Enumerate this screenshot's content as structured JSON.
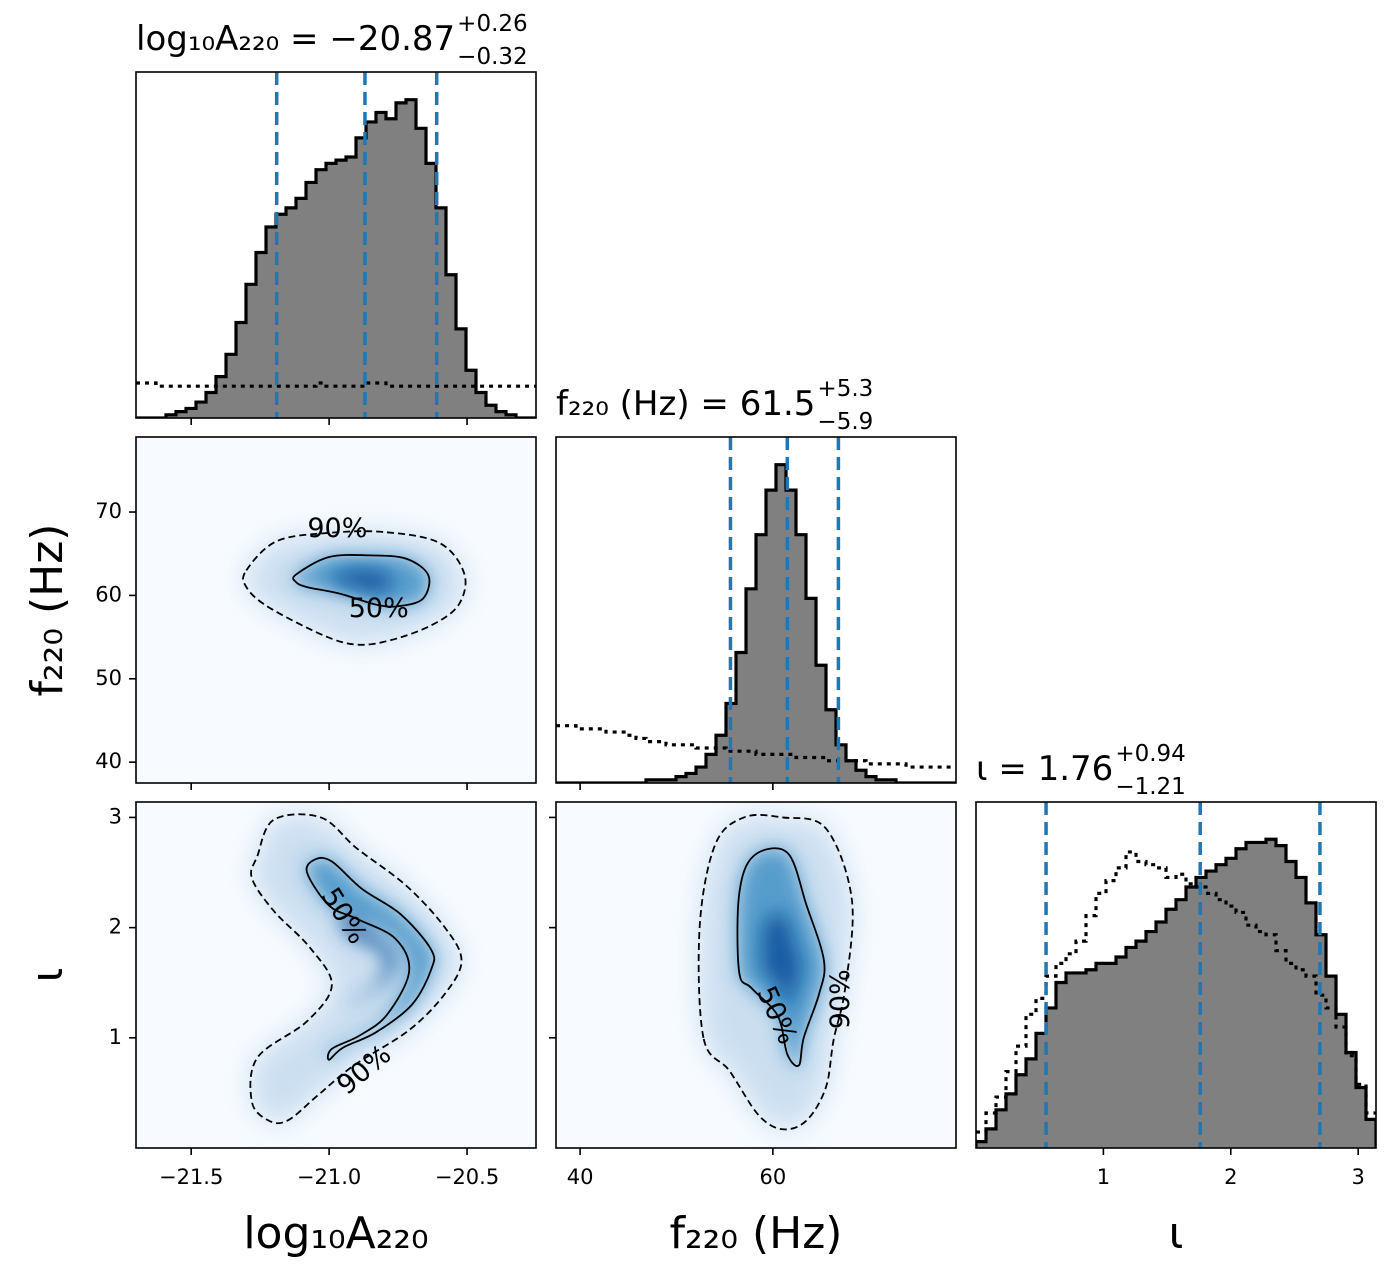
{
  "chart_data": {
    "type": "corner",
    "parameters": [
      {
        "key": "logA",
        "title": "log₁₀A₂₂₀ = −20.87",
        "title_sup": "+0.26",
        "title_sub": "−0.32",
        "median": -20.87,
        "lower": -21.19,
        "upper": -20.61,
        "xlim": [
          -21.7,
          -20.25
        ],
        "ticks": [
          -21.5,
          -21.0,
          -20.5
        ],
        "tick_labels": [
          "−21.5",
          "−21.0",
          "−20.5"
        ],
        "label": "log₁₀A₂₂₀",
        "ylabel": ""
      },
      {
        "key": "f220",
        "title": "f₂₂₀ (Hz) = 61.5",
        "title_sup": "+5.3",
        "title_sub": "−5.9",
        "median": 61.5,
        "lower": 55.6,
        "upper": 66.8,
        "xlim": [
          37.5,
          79
        ],
        "ticks": [
          40,
          60
        ],
        "tick_labels": [
          "40",
          "60"
        ],
        "ytick_values": [
          40,
          50,
          60,
          70
        ],
        "ytick_labels": [
          "40",
          "50",
          "60",
          "70"
        ],
        "label": "f₂₂₀ (Hz)",
        "ylabel": "f₂₂₀ (Hz)"
      },
      {
        "key": "iota",
        "title": "ι = 1.76",
        "title_sup": "+0.94",
        "title_sub": "−1.21",
        "median": 1.76,
        "lower": 0.55,
        "upper": 2.7,
        "xlim": [
          0,
          3.14
        ],
        "ticks": [
          1,
          2,
          3
        ],
        "tick_labels": [
          "1",
          "2",
          "3"
        ],
        "ytick_values": [
          1,
          2,
          3
        ],
        "ytick_labels": [
          "1",
          "2",
          "3"
        ],
        "label": "ι",
        "ylabel": "ι"
      }
    ],
    "histograms": {
      "logA": {
        "posterior": [
          0,
          0,
          0,
          0.01,
          0.02,
          0.03,
          0.05,
          0.08,
          0.13,
          0.2,
          0.3,
          0.42,
          0.52,
          0.6,
          0.64,
          0.66,
          0.69,
          0.74,
          0.78,
          0.8,
          0.81,
          0.82,
          0.88,
          0.93,
          0.96,
          0.94,
          0.99,
          1.0,
          0.91,
          0.8,
          0.66,
          0.45,
          0.28,
          0.15,
          0.08,
          0.04,
          0.02,
          0.01,
          0,
          0
        ],
        "prior": [
          0.11,
          0.11,
          0.1,
          0.1,
          0.1,
          0.1,
          0.1,
          0.1,
          0.1,
          0.1,
          0.1,
          0.1,
          0.1,
          0.1,
          0.1,
          0.1,
          0.1,
          0.1,
          0.11,
          0.1,
          0.1,
          0.1,
          0.1,
          0.11,
          0.11,
          0.1,
          0.1,
          0.1,
          0.1,
          0.1,
          0.1,
          0.1,
          0.1,
          0.1,
          0.1,
          0.1,
          0.1,
          0.1,
          0.1,
          0.1
        ]
      },
      "f220": {
        "posterior": [
          0,
          0,
          0,
          0,
          0,
          0,
          0,
          0,
          0,
          0.01,
          0.01,
          0.01,
          0.02,
          0.03,
          0.05,
          0.09,
          0.15,
          0.25,
          0.41,
          0.61,
          0.78,
          0.92,
          1.0,
          0.92,
          0.78,
          0.58,
          0.37,
          0.23,
          0.12,
          0.07,
          0.04,
          0.02,
          0.01,
          0.01,
          0,
          0,
          0,
          0,
          0,
          0
        ],
        "prior": [
          0.18,
          0.18,
          0.17,
          0.17,
          0.17,
          0.16,
          0.16,
          0.15,
          0.14,
          0.13,
          0.13,
          0.12,
          0.12,
          0.12,
          0.11,
          0.11,
          0.11,
          0.1,
          0.1,
          0.1,
          0.09,
          0.09,
          0.09,
          0.09,
          0.08,
          0.08,
          0.08,
          0.07,
          0.07,
          0.07,
          0.07,
          0.06,
          0.06,
          0.06,
          0.06,
          0.05,
          0.05,
          0.05,
          0.05,
          0.05
        ]
      },
      "iota": {
        "posterior": [
          0.02,
          0.06,
          0.12,
          0.17,
          0.23,
          0.28,
          0.36,
          0.44,
          0.52,
          0.55,
          0.55,
          0.56,
          0.58,
          0.58,
          0.6,
          0.63,
          0.65,
          0.68,
          0.71,
          0.75,
          0.78,
          0.82,
          0.85,
          0.87,
          0.89,
          0.91,
          0.94,
          0.96,
          0.96,
          0.97,
          0.95,
          0.9,
          0.85,
          0.77,
          0.67,
          0.54,
          0.42,
          0.3,
          0.19,
          0.09
        ],
        "prior": [
          0.05,
          0.11,
          0.16,
          0.24,
          0.32,
          0.42,
          0.47,
          0.54,
          0.58,
          0.61,
          0.65,
          0.73,
          0.8,
          0.84,
          0.88,
          0.93,
          0.9,
          0.89,
          0.88,
          0.85,
          0.86,
          0.83,
          0.82,
          0.8,
          0.78,
          0.76,
          0.74,
          0.7,
          0.68,
          0.67,
          0.62,
          0.58,
          0.56,
          0.54,
          0.48,
          0.44,
          0.38,
          0.29,
          0.2,
          0.11
        ]
      }
    },
    "joint": [
      {
        "x": "logA",
        "y": "f220",
        "contour_50": [
          [
            -21.12,
            62.5
          ],
          [
            -21.0,
            64.6
          ],
          [
            -20.85,
            64.8
          ],
          [
            -20.72,
            64.4
          ],
          [
            -20.64,
            62.4
          ],
          [
            -20.66,
            59.6
          ],
          [
            -20.75,
            58.7
          ],
          [
            -20.83,
            58.9
          ],
          [
            -20.96,
            60.2
          ],
          [
            -21.08,
            61.0
          ],
          [
            -21.12,
            61.6
          ]
        ],
        "contour_90": [
          [
            -21.3,
            63
          ],
          [
            -21.19,
            66.5
          ],
          [
            -21.0,
            67.5
          ],
          [
            -20.8,
            67.6
          ],
          [
            -20.6,
            66.3
          ],
          [
            -20.51,
            62.6
          ],
          [
            -20.53,
            58.9
          ],
          [
            -20.63,
            56.4
          ],
          [
            -20.78,
            54.6
          ],
          [
            -20.9,
            54.1
          ],
          [
            -21.02,
            55.2
          ],
          [
            -21.22,
            58.6
          ],
          [
            -21.3,
            61
          ]
        ],
        "contour_labels": [
          {
            "text": "90%",
            "x": -20.97,
            "y": 67.9
          },
          {
            "text": "50%",
            "x": -20.82,
            "y": 58.3
          }
        ]
      },
      {
        "x": "logA",
        "y": "iota",
        "contour_50": [
          [
            -21.08,
            2.5
          ],
          [
            -21.05,
            2.62
          ],
          [
            -20.99,
            2.6
          ],
          [
            -20.88,
            2.35
          ],
          [
            -20.74,
            2.12
          ],
          [
            -20.63,
            1.8
          ],
          [
            -20.63,
            1.62
          ],
          [
            -20.7,
            1.3
          ],
          [
            -20.83,
            1.05
          ],
          [
            -20.95,
            0.91
          ],
          [
            -21.0,
            0.8
          ],
          [
            -20.99,
            0.9
          ],
          [
            -20.89,
            1.02
          ],
          [
            -20.79,
            1.21
          ],
          [
            -20.71,
            1.6
          ],
          [
            -20.76,
            1.9
          ],
          [
            -20.9,
            2.08
          ],
          [
            -21.0,
            2.2
          ]
        ],
        "contour_90": [
          [
            -21.26,
            2.65
          ],
          [
            -21.2,
            2.98
          ],
          [
            -21.03,
            3.0
          ],
          [
            -20.9,
            2.72
          ],
          [
            -20.72,
            2.38
          ],
          [
            -20.58,
            2.0
          ],
          [
            -20.52,
            1.7
          ],
          [
            -20.58,
            1.4
          ],
          [
            -20.71,
            1.07
          ],
          [
            -20.91,
            0.75
          ],
          [
            -21.04,
            0.48
          ],
          [
            -21.15,
            0.25
          ],
          [
            -21.22,
            0.25
          ],
          [
            -21.28,
            0.42
          ],
          [
            -21.26,
            0.82
          ],
          [
            -21.08,
            1.15
          ],
          [
            -20.99,
            1.48
          ],
          [
            -21.07,
            1.82
          ],
          [
            -21.2,
            2.15
          ],
          [
            -21.28,
            2.45
          ]
        ],
        "contour_labels": [
          {
            "text": "50%",
            "x": -20.95,
            "y": 2.1,
            "rot": 58
          },
          {
            "text": "90%",
            "x": -20.87,
            "y": 0.7,
            "rot": -40
          }
        ]
      },
      {
        "x": "f220",
        "y": "iota",
        "contour_50": [
          [
            56.5,
            1.6
          ],
          [
            56.5,
            2.3
          ],
          [
            58,
            2.65
          ],
          [
            61.5,
            2.68
          ],
          [
            63.5,
            2.2
          ],
          [
            65.3,
            1.7
          ],
          [
            64.8,
            1.4
          ],
          [
            63.2,
            1.0
          ],
          [
            62.7,
            0.75
          ],
          [
            61.5,
            0.85
          ],
          [
            60.5,
            1.2
          ],
          [
            57.8,
            1.45
          ]
        ],
        "contour_90": [
          [
            52.8,
            1.0
          ],
          [
            52.4,
            2.0
          ],
          [
            54,
            2.75
          ],
          [
            57,
            3.0
          ],
          [
            61,
            3.0
          ],
          [
            65.5,
            2.9
          ],
          [
            68.2,
            2.25
          ],
          [
            67.5,
            1.45
          ],
          [
            66.3,
            0.98
          ],
          [
            65.5,
            0.55
          ],
          [
            63.5,
            0.25
          ],
          [
            61,
            0.17
          ],
          [
            58.5,
            0.3
          ],
          [
            55.5,
            0.7
          ]
        ],
        "contour_labels": [
          {
            "text": "50%",
            "x": 60.3,
            "y": 1.2,
            "rot": 66
          },
          {
            "text": "90%",
            "x": 67.1,
            "y": 1.35,
            "rot": -90
          }
        ]
      }
    ],
    "colors": {
      "posterior_fill": "#808080",
      "posterior_line": "#000000",
      "quantile_line": "#1f77b4",
      "density": "#08519c",
      "density_background": "#f7fbff"
    }
  }
}
